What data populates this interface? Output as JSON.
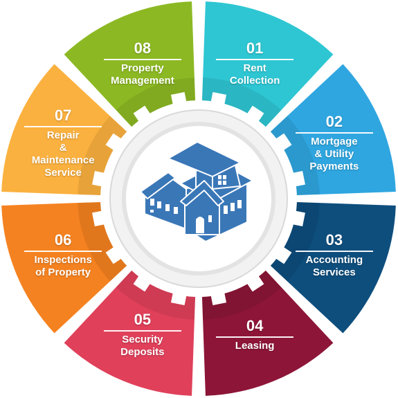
{
  "center_icon": "house-icon",
  "segments": [
    {
      "number": "01",
      "label": "Rent\nCollection",
      "color": "#2ec6d3"
    },
    {
      "number": "02",
      "label": "Mortgage\n& Utility\nPayments",
      "color": "#2fa6e0"
    },
    {
      "number": "03",
      "label": "Accounting\nServices",
      "color": "#0e4e7d"
    },
    {
      "number": "04",
      "label": "Leasing",
      "color": "#8d1538"
    },
    {
      "number": "05",
      "label": "Security\nDeposits",
      "color": "#e0405a"
    },
    {
      "number": "06",
      "label": "Inspections\nof Property",
      "color": "#f58220"
    },
    {
      "number": "07",
      "label": "Repair\n&\nMaintenance\nService",
      "color": "#fbb13f"
    },
    {
      "number": "08",
      "label": "Property\nManagement",
      "color": "#8cb923"
    }
  ]
}
